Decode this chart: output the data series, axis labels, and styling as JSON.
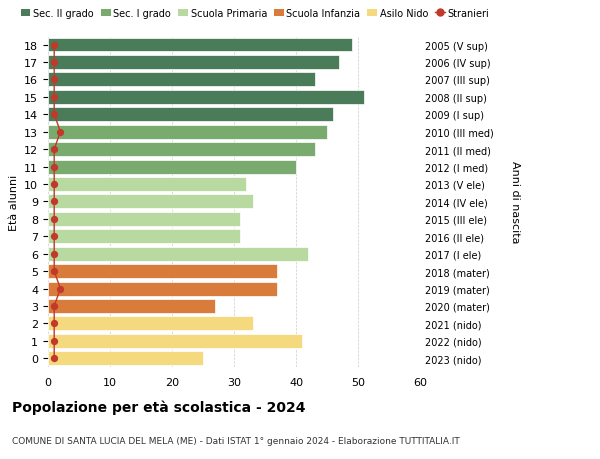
{
  "ages": [
    18,
    17,
    16,
    15,
    14,
    13,
    12,
    11,
    10,
    9,
    8,
    7,
    6,
    5,
    4,
    3,
    2,
    1,
    0
  ],
  "years": [
    "2005 (V sup)",
    "2006 (IV sup)",
    "2007 (III sup)",
    "2008 (II sup)",
    "2009 (I sup)",
    "2010 (III med)",
    "2011 (II med)",
    "2012 (I med)",
    "2013 (V ele)",
    "2014 (IV ele)",
    "2015 (III ele)",
    "2016 (II ele)",
    "2017 (I ele)",
    "2018 (mater)",
    "2019 (mater)",
    "2020 (mater)",
    "2021 (nido)",
    "2022 (nido)",
    "2023 (nido)"
  ],
  "values": [
    49,
    47,
    43,
    51,
    46,
    45,
    43,
    40,
    32,
    33,
    31,
    31,
    42,
    37,
    37,
    27,
    33,
    41,
    25
  ],
  "stranieri": [
    1,
    1,
    1,
    1,
    1,
    2,
    1,
    1,
    1,
    1,
    1,
    1,
    1,
    1,
    2,
    1,
    1,
    1,
    1
  ],
  "bar_colors": [
    "#4a7c59",
    "#4a7c59",
    "#4a7c59",
    "#4a7c59",
    "#4a7c59",
    "#7aab6e",
    "#7aab6e",
    "#7aab6e",
    "#b8d9a0",
    "#b8d9a0",
    "#b8d9a0",
    "#b8d9a0",
    "#b8d9a0",
    "#d97b3a",
    "#d97b3a",
    "#d97b3a",
    "#f5d97e",
    "#f5d97e",
    "#f5d97e"
  ],
  "legend_labels": [
    "Sec. II grado",
    "Sec. I grado",
    "Scuola Primaria",
    "Scuola Infanzia",
    "Asilo Nido",
    "Stranieri"
  ],
  "legend_colors": [
    "#4a7c59",
    "#7aab6e",
    "#b8d9a0",
    "#d97b3a",
    "#f5d97e",
    "#c0392b"
  ],
  "stranieri_color": "#c0392b",
  "title": "Popolazione per età scolastica - 2024",
  "subtitle": "COMUNE DI SANTA LUCIA DEL MELA (ME) - Dati ISTAT 1° gennaio 2024 - Elaborazione TUTTITALIA.IT",
  "ylabel_left": "Età alunni",
  "ylabel_right": "Anni di nascita",
  "xlim": [
    0,
    60
  ],
  "xticks": [
    0,
    10,
    20,
    30,
    40,
    50,
    60
  ],
  "bg_color": "#ffffff",
  "grid_color": "#cccccc"
}
